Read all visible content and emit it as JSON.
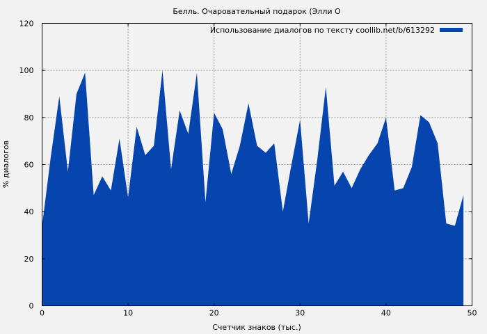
{
  "chart_data": {
    "type": "area",
    "title": "Белль. Очаровательный подарок (Элли О",
    "xlabel": "Счетчик знаков (тыс.)",
    "ylabel": "% диалогов",
    "xlim": [
      0,
      50
    ],
    "ylim": [
      0,
      120
    ],
    "xticks": [
      0,
      10,
      20,
      30,
      40,
      50
    ],
    "yticks": [
      0,
      20,
      40,
      60,
      80,
      100,
      120
    ],
    "grid": true,
    "legend_position": "top-right",
    "color": "#0645ad",
    "series": [
      {
        "name": "Использование диалогов по тексту coollib.net/b/613292",
        "x": [
          0,
          1,
          2,
          3,
          4,
          5,
          6,
          7,
          8,
          9,
          10,
          11,
          12,
          13,
          14,
          15,
          16,
          17,
          18,
          19,
          20,
          21,
          22,
          23,
          24,
          25,
          26,
          27,
          28,
          29,
          30,
          31,
          32,
          33,
          34,
          35,
          36,
          37,
          38,
          39,
          40,
          41,
          42,
          43,
          44,
          45,
          46,
          47,
          48,
          49
        ],
        "y": [
          34,
          63,
          89,
          57,
          90,
          99,
          47,
          55,
          49,
          71,
          46,
          76,
          64,
          68,
          100,
          58,
          83,
          73,
          99,
          44,
          82,
          75,
          56,
          68,
          86,
          68,
          65,
          69,
          40,
          60,
          79,
          35,
          62,
          93,
          51,
          57,
          50,
          58,
          64,
          69,
          80,
          49,
          50,
          59,
          81,
          78,
          69,
          35,
          34,
          47
        ]
      }
    ]
  }
}
